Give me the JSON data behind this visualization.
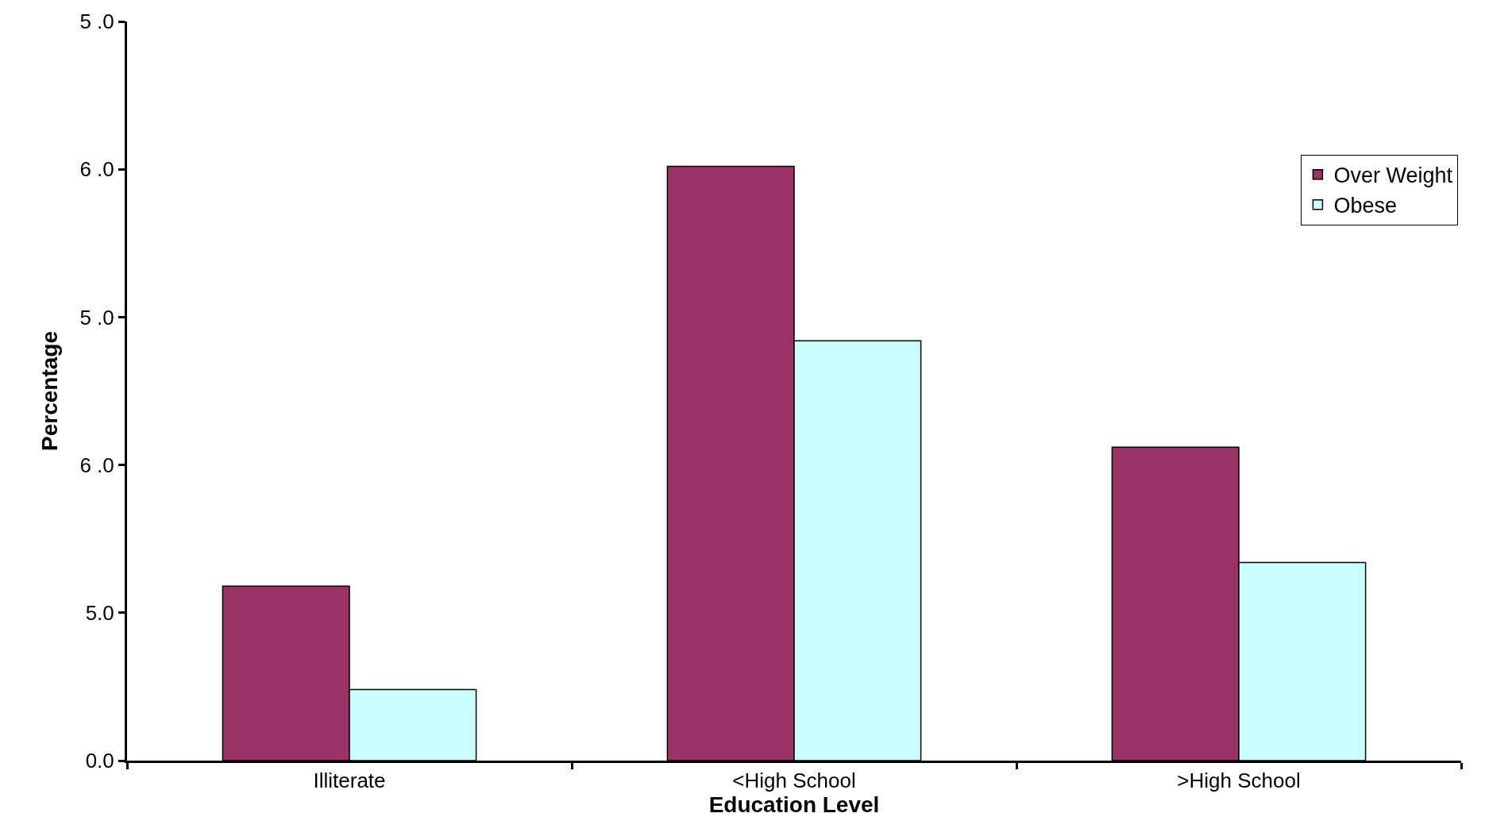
{
  "chart_data": {
    "type": "bar",
    "xlabel": "Education Level",
    "ylabel": "Percentage",
    "categories": [
      "Illiterate",
      "<High School",
      ">High School"
    ],
    "series": [
      {
        "name": "Over Weight",
        "color": "#993366",
        "values": [
          5.9,
          20.1,
          10.6
        ]
      },
      {
        "name": "Obese",
        "color": "#ccffff",
        "values": [
          2.4,
          14.2,
          6.7
        ]
      }
    ],
    "ylim": [
      0,
      25
    ],
    "yticks": [
      {
        "value": 0,
        "label": "0.0"
      },
      {
        "value": 5,
        "label": "5.0"
      },
      {
        "value": 10,
        "label": "6 .0"
      },
      {
        "value": 15,
        "label": "5 .0"
      },
      {
        "value": 20,
        "label": "6 .0"
      },
      {
        "value": 25,
        "label": "5 .0"
      }
    ],
    "grid": false,
    "legend": "top right"
  }
}
